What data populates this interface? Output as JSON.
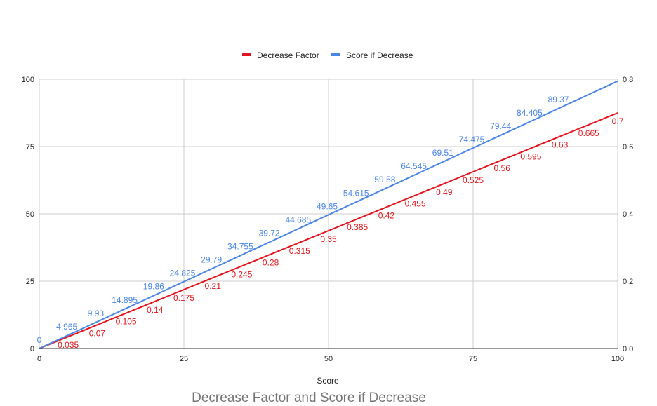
{
  "chart_data": {
    "type": "line",
    "title": "Decrease Factor and Score if Decrease",
    "xlabel": "Score",
    "ylabel": "",
    "y2label": "",
    "xlim": [
      0,
      100
    ],
    "ylim": [
      0,
      100
    ],
    "y2lim": [
      0,
      0.8
    ],
    "xticks": [
      "0",
      "25",
      "50",
      "75",
      "100"
    ],
    "yticks": [
      "0",
      "25",
      "50",
      "75",
      "100"
    ],
    "y2ticks": [
      "0.0",
      "0.2",
      "0.4",
      "0.6",
      "0.8"
    ],
    "grid": true,
    "legend_position": "top",
    "series": [
      {
        "name": "Decrease Factor",
        "axis": "right",
        "color": "#e3141b",
        "x": [
          0,
          5,
          10,
          15,
          20,
          25,
          30,
          35,
          40,
          45,
          50,
          55,
          60,
          65,
          70,
          75,
          80,
          85,
          90,
          95,
          100
        ],
        "values": [
          0,
          0.035,
          0.07,
          0.105,
          0.14,
          0.175,
          0.21,
          0.245,
          0.28,
          0.315,
          0.35,
          0.385,
          0.42,
          0.455,
          0.49,
          0.525,
          0.56,
          0.595,
          0.63,
          0.665,
          0.7
        ],
        "labels": [
          "",
          "0.035",
          "0.07",
          "0.105",
          "0.14",
          "0.175",
          "0.21",
          "0.245",
          "0.28",
          "0.315",
          "0.35",
          "0.385",
          "0.42",
          "0.455",
          "0.49",
          "0.525",
          "0.56",
          "0.595",
          "0.63",
          "0.665",
          "0.7"
        ]
      },
      {
        "name": "Score if Decrease",
        "axis": "left",
        "color": "#4a86e8",
        "x": [
          0,
          5,
          10,
          15,
          20,
          25,
          30,
          35,
          40,
          45,
          50,
          55,
          60,
          65,
          70,
          75,
          80,
          85,
          90,
          95,
          100
        ],
        "values": [
          0,
          4.965,
          9.93,
          14.895,
          19.86,
          24.825,
          29.79,
          34.755,
          39.72,
          44.685,
          49.65,
          54.615,
          59.58,
          64.545,
          69.51,
          74.475,
          79.44,
          84.405,
          89.37,
          94.335,
          99.3
        ],
        "labels": [
          "0",
          "4.965",
          "9.93",
          "14.895",
          "19.86",
          "24.825",
          "29.79",
          "34.755",
          "39.72",
          "44.685",
          "49.65",
          "54.615",
          "59.58",
          "64.545",
          "69.51",
          "74.475",
          "79.44",
          "84.405",
          "89.37",
          "",
          ""
        ]
      }
    ]
  }
}
